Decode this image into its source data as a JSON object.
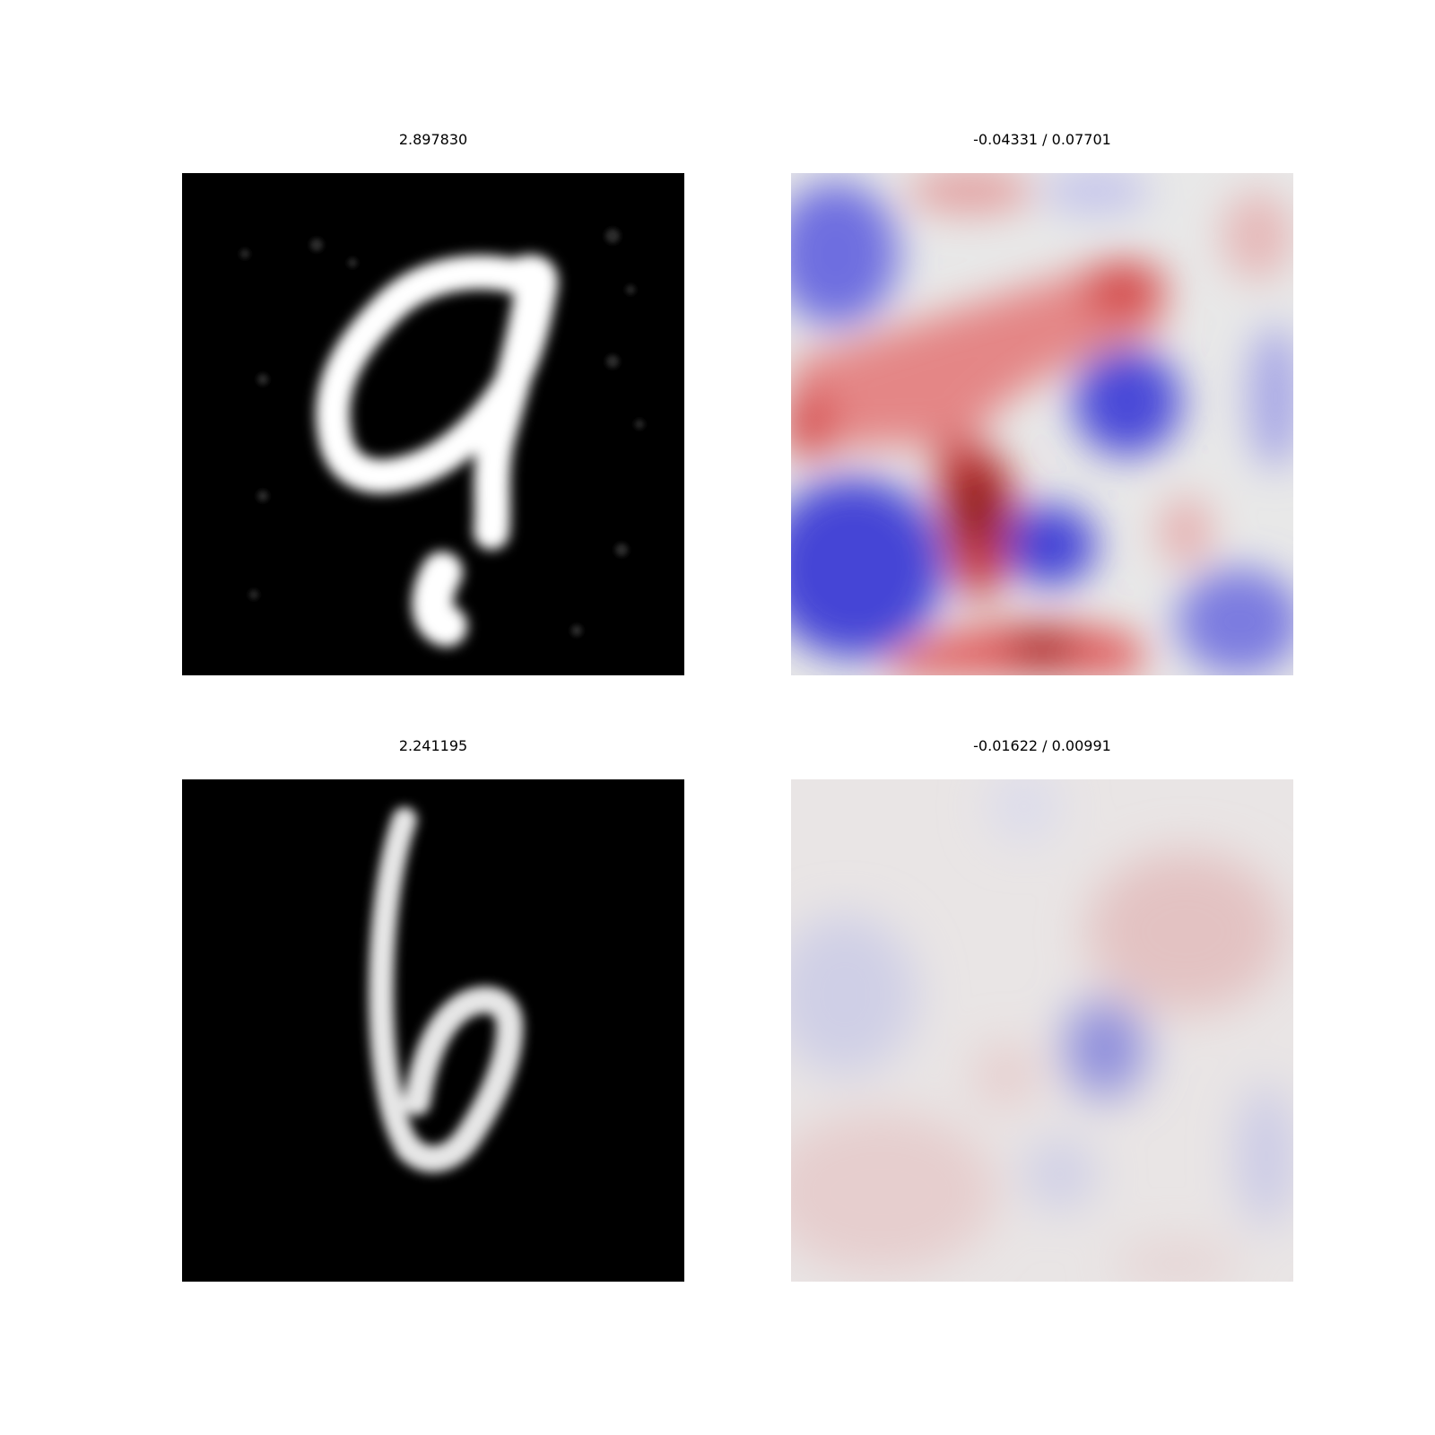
{
  "panels": [
    {
      "title": "2.897830",
      "kind": "digit"
    },
    {
      "title": "-0.04331 / 0.07701",
      "kind": "heatmap"
    },
    {
      "title": "2.241195",
      "kind": "digit"
    },
    {
      "title": "-0.01622 / 0.00991",
      "kind": "heatmap"
    }
  ],
  "colors": {
    "background": "#ffffff",
    "positive": "#d62728",
    "negative": "#3434d6",
    "neutral": "#e8e8e8"
  }
}
